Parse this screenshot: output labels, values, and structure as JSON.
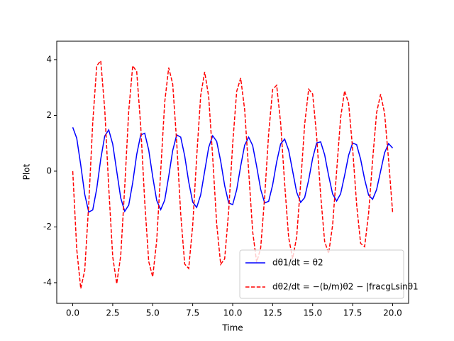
{
  "chart_data": {
    "type": "line",
    "x_label": "Time",
    "y_label": "Plot",
    "x": [
      0,
      0.25,
      0.5,
      0.75,
      1,
      1.25,
      1.5,
      1.75,
      2,
      2.25,
      2.5,
      2.75,
      3,
      3.25,
      3.5,
      3.75,
      4,
      4.25,
      4.5,
      4.75,
      5,
      5.25,
      5.5,
      5.75,
      6,
      6.25,
      6.5,
      6.75,
      7,
      7.25,
      7.5,
      7.75,
      8,
      8.25,
      8.5,
      8.75,
      9,
      9.25,
      9.5,
      9.75,
      10,
      10.25,
      10.5,
      10.75,
      11,
      11.25,
      11.5,
      11.75,
      12,
      12.25,
      12.5,
      12.75,
      13,
      13.25,
      13.5,
      13.75,
      14,
      14.25,
      14.5,
      14.75,
      15,
      15.25,
      15.5,
      15.75,
      16,
      16.25,
      16.5,
      16.75,
      17,
      17.25,
      17.5,
      17.75,
      18,
      18.25,
      18.5,
      18.75,
      19,
      19.25,
      19.5,
      19.75,
      20
    ],
    "series": [
      {
        "name": "dθ1/dt = θ2",
        "color": "#0000ff",
        "dashed": false,
        "values": [
          1.57,
          1.18,
          0.22,
          -0.83,
          -1.47,
          -1.39,
          -0.63,
          0.43,
          1.26,
          1.48,
          0.97,
          0,
          -0.96,
          -1.44,
          -1.22,
          -0.41,
          0.6,
          1.3,
          1.36,
          0.76,
          -0.2,
          -1.05,
          -1.38,
          -1.04,
          -0.19,
          0.74,
          1.3,
          1.22,
          0.55,
          -0.38,
          -1.11,
          -1.3,
          -0.85,
          0,
          0.85,
          1.27,
          1.07,
          0.36,
          -0.52,
          -1.14,
          -1.2,
          -0.67,
          0.18,
          0.93,
          1.22,
          0.92,
          0.17,
          -0.65,
          -1.14,
          -1.08,
          -0.49,
          0.33,
          0.98,
          1.15,
          0.75,
          0,
          -0.75,
          -1.12,
          -0.95,
          -0.32,
          0.46,
          1.01,
          1.05,
          0.59,
          -0.16,
          -0.82,
          -1.07,
          -0.81,
          -0.15,
          0.57,
          1.01,
          0.95,
          0.43,
          -0.29,
          -0.86,
          -1.01,
          -0.66,
          0,
          0.66,
          0.99,
          0.83
        ]
      },
      {
        "name": "dθ2/dt = −(b/m)θ2 − |fracgLsinθ1",
        "color": "#ff0000",
        "dashed": true,
        "values": [
          0,
          -2.8,
          -4.21,
          -3.56,
          -1.18,
          1.74,
          3.78,
          3.96,
          2.22,
          -0.58,
          -3.07,
          -4.04,
          -3.03,
          -0.57,
          2.15,
          3.78,
          3.57,
          1.62,
          -1.09,
          -3.24,
          -3.79,
          -2.49,
          0,
          2.47,
          3.71,
          3.13,
          1.04,
          -1.53,
          -3.33,
          -3.49,
          -1.95,
          0.51,
          2.71,
          3.56,
          2.67,
          0.5,
          -1.89,
          -3.34,
          -3.14,
          -1.43,
          0.97,
          2.86,
          3.34,
          2.2,
          0,
          -2.17,
          -3.27,
          -2.76,
          -0.92,
          1.35,
          2.93,
          3.08,
          1.72,
          -0.45,
          -2.38,
          -3.14,
          -2.36,
          -0.44,
          1.67,
          2.94,
          2.77,
          1.26,
          -0.85,
          -2.52,
          -2.95,
          -1.93,
          0,
          1.92,
          2.88,
          2.43,
          0.81,
          -1.19,
          -2.59,
          -2.71,
          -1.51,
          0.4,
          2.1,
          2.76,
          2.07,
          0.39,
          -1.47
        ]
      }
    ],
    "xlim": [
      -1,
      21
    ],
    "ylim": [
      -4.74,
      4.66
    ],
    "xticks": [
      {
        "value": 0,
        "label": "0.0"
      },
      {
        "value": 2.5,
        "label": "2.5"
      },
      {
        "value": 5,
        "label": "5.0"
      },
      {
        "value": 7.5,
        "label": "7.5"
      },
      {
        "value": 10,
        "label": "10.0"
      },
      {
        "value": 12.5,
        "label": "12.5"
      },
      {
        "value": 15,
        "label": "15.0"
      },
      {
        "value": 17.5,
        "label": "17.5"
      },
      {
        "value": 20,
        "label": "20.0"
      }
    ],
    "yticks": [
      -4,
      -2,
      0,
      2,
      4
    ],
    "legend": "lower right",
    "grid": false
  }
}
